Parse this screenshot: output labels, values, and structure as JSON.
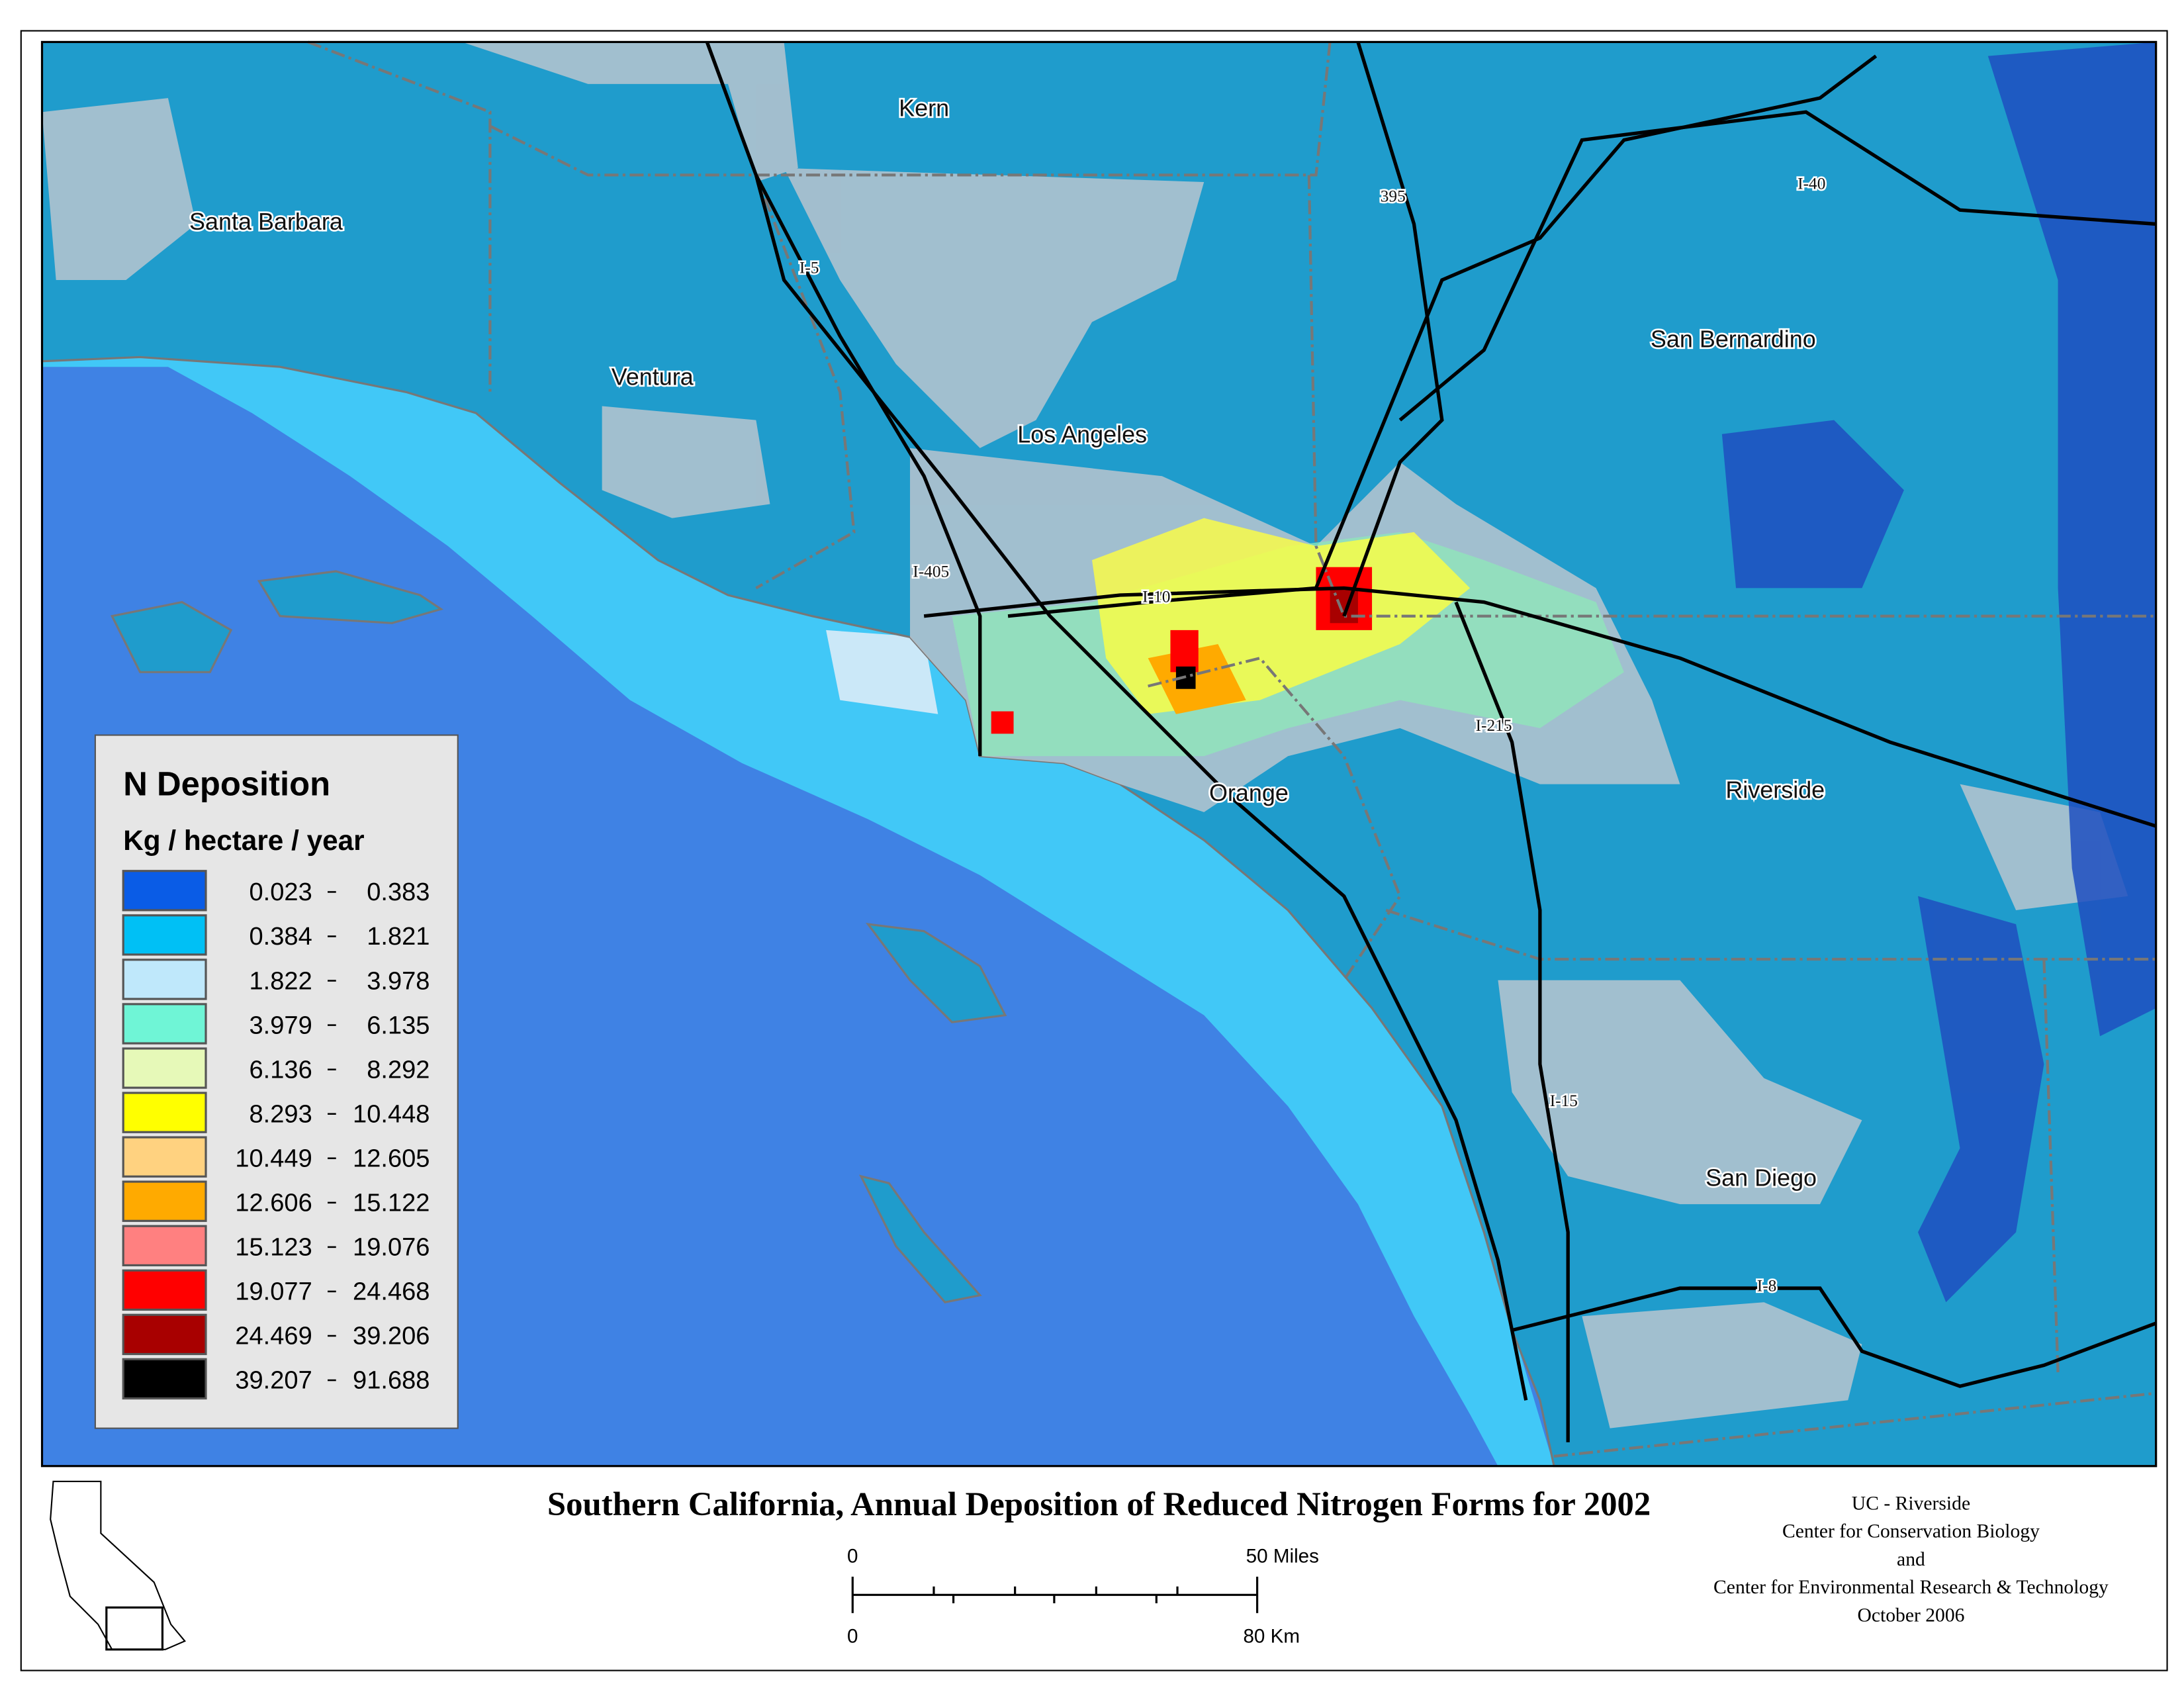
{
  "title": "Southern California, Annual Deposition of Reduced Nitrogen Forms  for 2002",
  "legend": {
    "title": "N Deposition",
    "unit": "Kg / hectare / year",
    "entries": [
      {
        "from": 0.023,
        "to": 0.383,
        "color": "#0a5ce6"
      },
      {
        "from": 0.384,
        "to": 1.821,
        "color": "#00c0f5"
      },
      {
        "from": 1.822,
        "to": 3.978,
        "color": "#bfe8fb"
      },
      {
        "from": 3.979,
        "to": 6.135,
        "color": "#6ff5d6"
      },
      {
        "from": 6.136,
        "to": 8.292,
        "color": "#e6f9b8"
      },
      {
        "from": 8.293,
        "to": 10.448,
        "color": "#ffff00"
      },
      {
        "from": 10.449,
        "to": 12.605,
        "color": "#ffd280"
      },
      {
        "from": 12.606,
        "to": 15.122,
        "color": "#ffaa00"
      },
      {
        "from": 15.123,
        "to": 19.076,
        "color": "#ff8080"
      },
      {
        "from": 19.077,
        "to": 24.468,
        "color": "#ff0000"
      },
      {
        "from": 24.469,
        "to": 39.206,
        "color": "#a80000"
      },
      {
        "from": 39.207,
        "to": 91.688,
        "color": "#000000"
      }
    ]
  },
  "places": [
    "Kern",
    "Santa Barbara",
    "Ventura",
    "Los Angeles",
    "San Bernardino",
    "Orange",
    "Riverside",
    "San Diego"
  ],
  "highways": [
    "I-5",
    "395",
    "I-40",
    "I-405",
    "I-10",
    "I-215",
    "I-15",
    "I-8"
  ],
  "scale": {
    "miles_start": "0",
    "miles_end": "50 Miles",
    "km_start": "0",
    "km_end": "80 Km"
  },
  "credits": [
    "UC - Riverside",
    "Center for Conservation Biology",
    "and",
    "Center for Environmental Research & Technology",
    "October 2006"
  ]
}
